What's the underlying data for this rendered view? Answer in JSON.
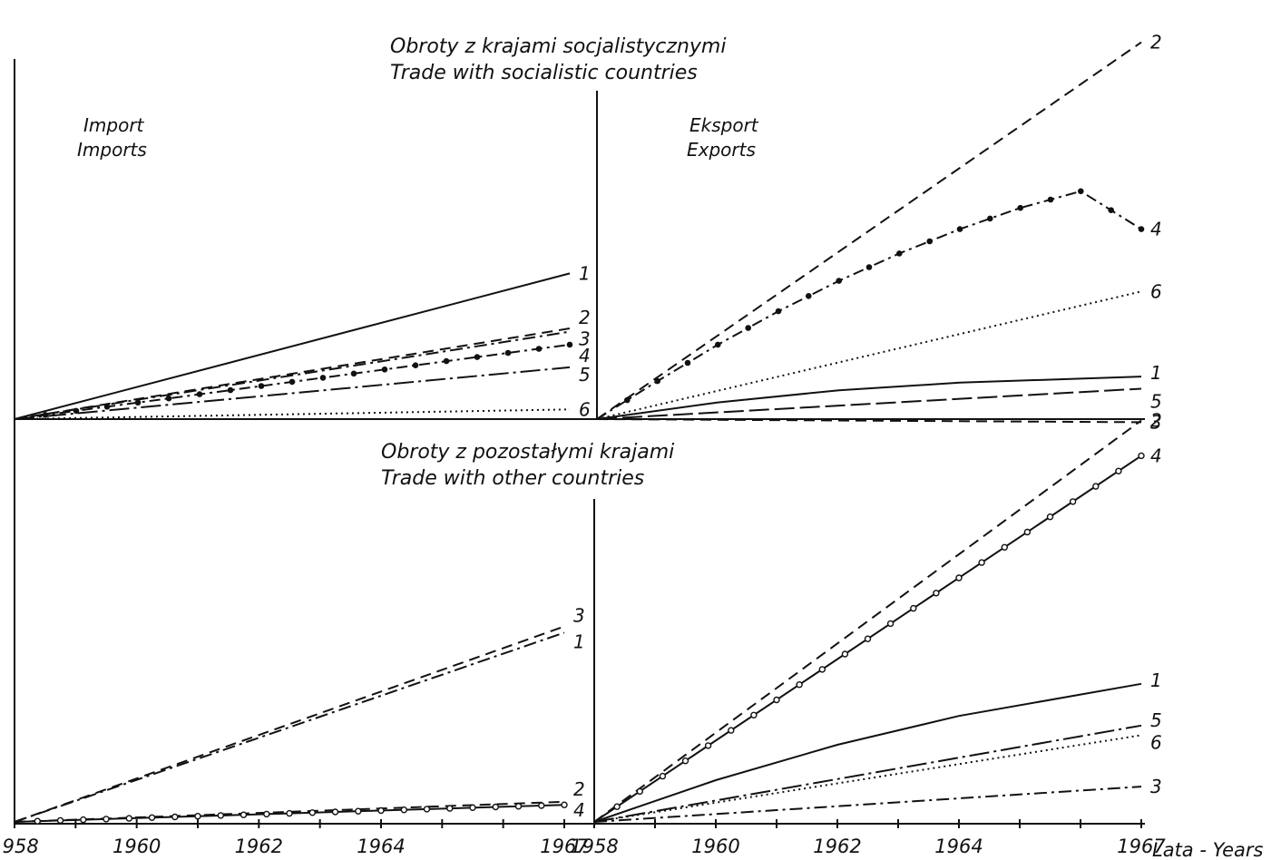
{
  "figure": {
    "title_top_pl": "Obroty z krajami socjalistycznymi",
    "title_top_en": "Trade with socialistic countries",
    "title_bottom_pl": "Obroty z pozostałymi krajami",
    "title_bottom_en": "Trade with other countries",
    "import_pl": "Import",
    "import_en": "Imports",
    "export_pl": "Eksport",
    "export_en": "Exports",
    "x_axis_label": "Lata - Years"
  },
  "chart_data": [
    {
      "type": "line",
      "title": "Obroty z krajami socjalistycznymi / Trade with socialistic countries",
      "subtitle": "Import / Imports",
      "xlabel": "",
      "ylabel": "",
      "xlim": [
        1958,
        1967
      ],
      "ylim": [
        0,
        10
      ],
      "grid": false,
      "legend": "line-end labels",
      "series": [
        {
          "name": "1",
          "style": "solid",
          "x": [
            1958,
            1967
          ],
          "y": [
            0,
            4.5
          ]
        },
        {
          "name": "2",
          "style": "dashed",
          "x": [
            1958,
            1967
          ],
          "y": [
            0,
            2.8
          ]
        },
        {
          "name": "3",
          "style": "dash-dot",
          "x": [
            1958,
            1967
          ],
          "y": [
            0,
            2.7
          ]
        },
        {
          "name": "4",
          "style": "dash-dot-dots",
          "x": [
            1958,
            1967
          ],
          "y": [
            0,
            2.3
          ]
        },
        {
          "name": "5",
          "style": "long-dash-dot",
          "x": [
            1958,
            1967
          ],
          "y": [
            0,
            1.6
          ]
        },
        {
          "name": "6",
          "style": "dotted",
          "x": [
            1958,
            1967
          ],
          "y": [
            0,
            0.3
          ]
        }
      ]
    },
    {
      "type": "line",
      "title": "Obroty z krajami socjalistycznymi / Trade with socialistic countries",
      "subtitle": "Eksport / Exports",
      "xlabel": "",
      "ylabel": "",
      "xlim": [
        1958,
        1967
      ],
      "ylim": [
        -1,
        13
      ],
      "grid": false,
      "legend": "line-end labels",
      "series": [
        {
          "name": "2",
          "style": "dashed",
          "x": [
            1958,
            1967
          ],
          "y": [
            0,
            12.4
          ]
        },
        {
          "name": "4",
          "style": "dash-dot-dots",
          "x": [
            1958,
            1959,
            1960,
            1961,
            1962,
            1963,
            1964,
            1965,
            1966,
            1967
          ],
          "y": [
            0,
            1.25,
            2.45,
            3.55,
            4.55,
            5.45,
            6.25,
            6.95,
            7.5,
            6.25
          ]
        },
        {
          "name": "6",
          "style": "dotted",
          "x": [
            1958,
            1967
          ],
          "y": [
            0,
            4.2
          ]
        },
        {
          "name": "1",
          "style": "solid",
          "x": [
            1958,
            1960,
            1962,
            1964,
            1967
          ],
          "y": [
            0,
            0.55,
            0.95,
            1.2,
            1.4
          ]
        },
        {
          "name": "5",
          "style": "long-dash",
          "x": [
            1958,
            1967
          ],
          "y": [
            0,
            1.0
          ]
        },
        {
          "name": "3",
          "style": "dashed",
          "x": [
            1958,
            1967
          ],
          "y": [
            0,
            -0.1
          ]
        }
      ]
    },
    {
      "type": "line",
      "title": "Obroty z pozostałymi krajami / Trade with other countries",
      "subtitle": "Import / Imports",
      "xlabel": "",
      "ylabel": "",
      "xlim": [
        1958,
        1967
      ],
      "ylim": [
        0,
        10
      ],
      "grid": false,
      "legend": "line-end labels",
      "series": [
        {
          "name": "3",
          "style": "dashed",
          "x": [
            1958,
            1967
          ],
          "y": [
            0,
            6.3
          ]
        },
        {
          "name": "1",
          "style": "dash-dot",
          "x": [
            1958,
            1967
          ],
          "y": [
            0,
            6.1
          ]
        },
        {
          "name": "2",
          "style": "dashed",
          "x": [
            1958,
            1967
          ],
          "y": [
            0,
            0.65
          ]
        },
        {
          "name": "4",
          "style": "circle-markers",
          "x": [
            1958,
            1967
          ],
          "y": [
            0,
            0.55
          ]
        }
      ]
    },
    {
      "type": "line",
      "title": "Obroty z pozostałymi krajami / Trade with other countries",
      "subtitle": "Eksport / Exports",
      "xlabel": "Lata - Years",
      "ylabel": "",
      "xlim": [
        1958,
        1967
      ],
      "ylim": [
        0,
        12
      ],
      "grid": false,
      "legend": "line-end labels",
      "series": [
        {
          "name": "2",
          "style": "dashed",
          "x": [
            1958,
            1967
          ],
          "y": [
            0,
            12.5
          ]
        },
        {
          "name": "4",
          "style": "circle-markers",
          "x": [
            1958,
            1967
          ],
          "y": [
            0,
            11.4
          ]
        },
        {
          "name": "1",
          "style": "solid",
          "x": [
            1958,
            1960,
            1962,
            1964,
            1967
          ],
          "y": [
            0,
            1.3,
            2.4,
            3.3,
            4.3
          ]
        },
        {
          "name": "5",
          "style": "long-dash-dot",
          "x": [
            1958,
            1967
          ],
          "y": [
            0,
            3.0
          ]
        },
        {
          "name": "6",
          "style": "dotted",
          "x": [
            1958,
            1967
          ],
          "y": [
            0,
            2.7
          ]
        },
        {
          "name": "3",
          "style": "dash-dot",
          "x": [
            1958,
            1967
          ],
          "y": [
            0,
            1.1
          ]
        }
      ]
    }
  ],
  "x_ticks": [
    "1958",
    "1960",
    "1962",
    "1964",
    "1967"
  ]
}
